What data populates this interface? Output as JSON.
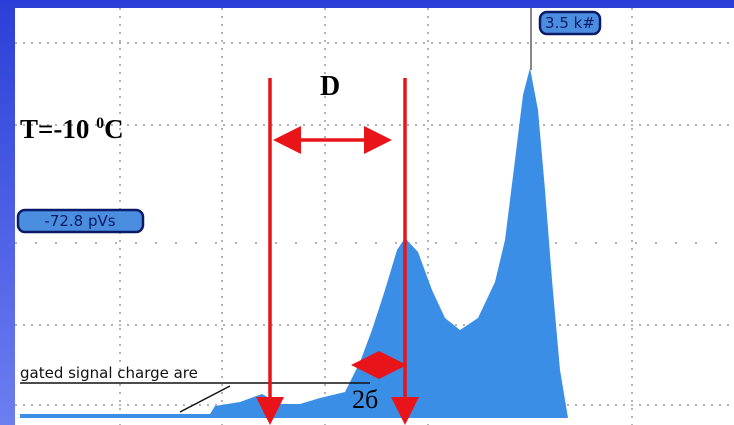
{
  "scope": {
    "count_label": "3.5 k#",
    "offset_label": "-72.8 pVs",
    "measure_label": "gated signal charge are"
  },
  "annotations": {
    "temperature": "T=-10 ",
    "degree": "0",
    "unit": "C",
    "distance": "D",
    "width": "2б"
  }
}
